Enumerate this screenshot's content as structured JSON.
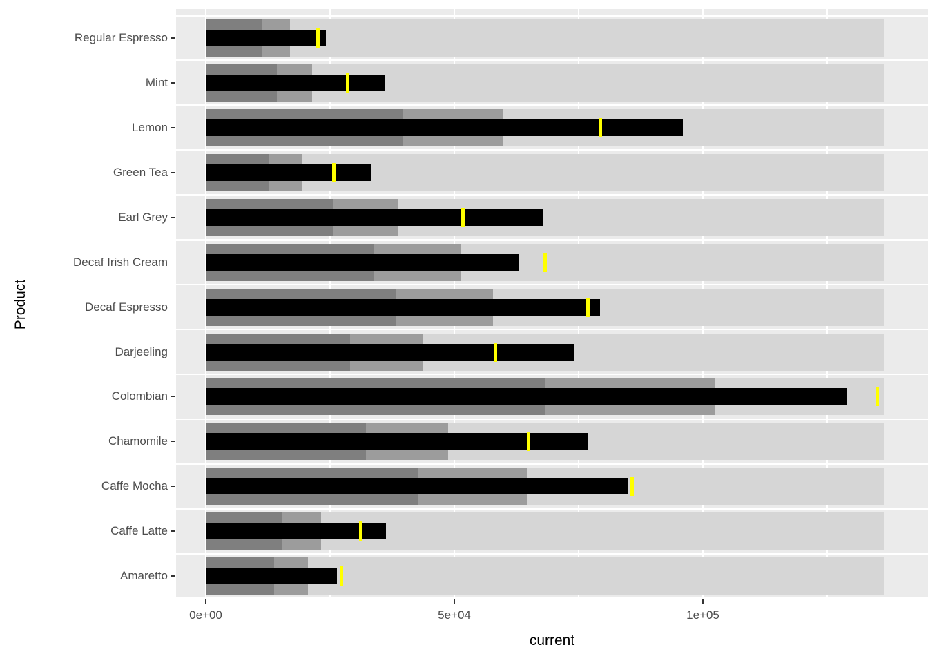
{
  "chart_data": {
    "type": "bullet",
    "orientation": "horizontal",
    "xlabel": "current",
    "ylabel": "Product",
    "x_axis": {
      "tick_labels": [
        "0e+00",
        "5e+04",
        "1e+05"
      ],
      "tick_values": [
        0,
        50000,
        100000
      ],
      "minor_tick_values": [
        25000,
        75000,
        125000
      ],
      "range": [
        0,
        145300
      ],
      "grid": "on"
    },
    "categories": [
      "Regular Espresso",
      "Mint",
      "Lemon",
      "Green Tea",
      "Earl Grey",
      "Decaf Irish Cream",
      "Decaf Espresso",
      "Darjeeling",
      "Colombian",
      "Chamomile",
      "Caffe Mocha",
      "Caffe Latte",
      "Amaretto"
    ],
    "rows": [
      {
        "product": "Regular Espresso",
        "range_low": 11300,
        "range_mid": 16900,
        "range_high": 136400,
        "current": 24200,
        "target": 22600
      },
      {
        "product": "Mint",
        "range_low": 14300,
        "range_mid": 21400,
        "range_high": 136400,
        "current": 36100,
        "target": 28600
      },
      {
        "product": "Lemon",
        "range_low": 39600,
        "range_mid": 59700,
        "range_high": 136400,
        "current": 96000,
        "target": 79400
      },
      {
        "product": "Green Tea",
        "range_low": 12800,
        "range_mid": 19300,
        "range_high": 136400,
        "current": 33200,
        "target": 25700
      },
      {
        "product": "Earl Grey",
        "range_low": 25700,
        "range_mid": 38700,
        "range_high": 136400,
        "current": 67800,
        "target": 51700
      },
      {
        "product": "Decaf Irish Cream",
        "range_low": 33900,
        "range_mid": 51200,
        "range_high": 136400,
        "current": 63100,
        "target": 68200
      },
      {
        "product": "Decaf Espresso",
        "range_low": 38300,
        "range_mid": 57800,
        "range_high": 136400,
        "current": 79300,
        "target": 76900
      },
      {
        "product": "Darjeeling",
        "range_low": 29000,
        "range_mid": 43600,
        "range_high": 136400,
        "current": 74100,
        "target": 58200
      },
      {
        "product": "Colombian",
        "range_low": 68300,
        "range_mid": 102300,
        "range_high": 136400,
        "current": 128900,
        "target": 135100
      },
      {
        "product": "Chamomile",
        "range_low": 32200,
        "range_mid": 48700,
        "range_high": 136400,
        "current": 76800,
        "target": 64900
      },
      {
        "product": "Caffe Mocha",
        "range_low": 42700,
        "range_mid": 64600,
        "range_high": 136400,
        "current": 85000,
        "target": 85700
      },
      {
        "product": "Caffe Latte",
        "range_low": 15400,
        "range_mid": 23200,
        "range_high": 136400,
        "current": 36300,
        "target": 31200
      },
      {
        "product": "Amaretto",
        "range_low": 13700,
        "range_mid": 20600,
        "range_high": 136400,
        "current": 26400,
        "target": 27300
      }
    ],
    "legend": "none"
  },
  "colors": {
    "panel_bg": "#ebebeb",
    "grid": "#ffffff",
    "range_high": "#d6d6d6",
    "range_mid": "#9c9c9c",
    "range_low": "#7f7f7f",
    "measure": "#000000",
    "target": "#ffff00",
    "tick_label": "#4d4d4d",
    "axis_title": "#000000",
    "tick_mark": "#333333"
  }
}
